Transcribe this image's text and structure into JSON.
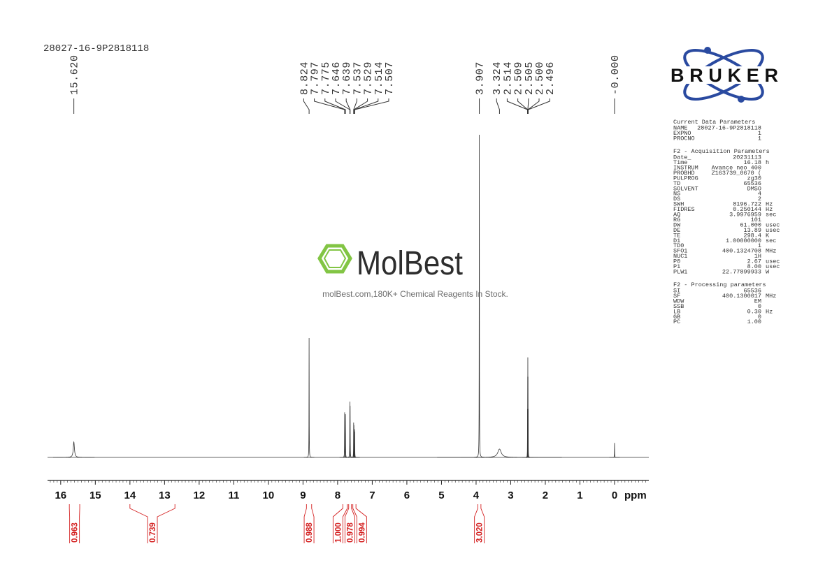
{
  "chart_data": {
    "type": "nmr",
    "title": "28027-16-9P2818118",
    "xlabel": "ppm",
    "xlim": [
      16.38,
      -0.99
    ],
    "xticks": [
      16,
      15,
      14,
      13,
      12,
      11,
      10,
      9,
      8,
      7,
      6,
      5,
      4,
      3,
      2,
      1,
      0
    ],
    "minor_xtick_step": 0.1,
    "ylim": [
      0,
      100
    ],
    "color": "#333333",
    "integral_color": "#d42020",
    "peaks": [
      {
        "ppm": 15.62,
        "label": "15.620",
        "height": 4.8,
        "width": 0.02
      },
      {
        "ppm": 8.824,
        "label": "8.824",
        "height": 37,
        "width": 0.003
      },
      {
        "ppm": 7.797,
        "label": "7.797",
        "height": 14,
        "width": 0.003
      },
      {
        "ppm": 7.775,
        "label": "7.775",
        "height": 13.4,
        "width": 0.003
      },
      {
        "ppm": 7.646,
        "label": "7.646",
        "height": 17.3,
        "width": 0.003
      },
      {
        "ppm": 7.639,
        "label": "7.639",
        "height": 16,
        "width": 0.003
      },
      {
        "ppm": 7.537,
        "label": "7.537",
        "height": 10.8,
        "width": 0.003
      },
      {
        "ppm": 7.529,
        "label": "7.529",
        "height": 10,
        "width": 0.003
      },
      {
        "ppm": 7.514,
        "label": "7.514",
        "height": 8.7,
        "width": 0.003
      },
      {
        "ppm": 7.507,
        "label": "7.507",
        "height": 8,
        "width": 0.003
      },
      {
        "ppm": 3.907,
        "label": "3.907",
        "height": 100,
        "width": 0.003
      },
      {
        "ppm": 3.324,
        "label": "3.324",
        "height": 2.6,
        "width": 0.06
      },
      {
        "ppm": 2.514,
        "label": "2.514",
        "height": 15,
        "width": 0.002
      },
      {
        "ppm": 2.509,
        "label": "2.509",
        "height": 25,
        "width": 0.002
      },
      {
        "ppm": 2.505,
        "label": "2.505",
        "height": 31,
        "width": 0.002
      },
      {
        "ppm": 2.5,
        "label": "2.500",
        "height": 25,
        "width": 0.002
      },
      {
        "ppm": 2.496,
        "label": "2.496",
        "height": 15,
        "width": 0.002
      },
      {
        "ppm": 0,
        "label": "-0.000",
        "height": 4.5,
        "width": 0.003
      }
    ],
    "integrals": [
      {
        "value": 0.963,
        "label": "0.963",
        "range": [
          15.75,
          15.45
        ]
      },
      {
        "value": 0.739,
        "label": "0.739",
        "range": [
          14.0,
          12.7
        ]
      },
      {
        "value": 0.988,
        "label": "0.988",
        "range": [
          8.9,
          8.75
        ]
      },
      {
        "value": 1.0,
        "label": "1.000",
        "range": [
          7.85,
          7.72
        ]
      },
      {
        "value": 0.978,
        "label": "0.978",
        "range": [
          7.68,
          7.6
        ]
      },
      {
        "value": 0.994,
        "label": "0.994",
        "range": [
          7.56,
          7.47
        ]
      },
      {
        "value": 3.02,
        "label": "3.020",
        "range": [
          3.95,
          3.86
        ]
      }
    ]
  },
  "logo": {
    "text": "BRUKER"
  },
  "watermark": {
    "brand": "MolBest",
    "tagline": "molBest.com,180K+ Chemical Reagents In Stock."
  },
  "parameters": [
    {
      "title": "Current Data Parameters",
      "rows": [
        {
          "name": "NAME",
          "value": "28027-16-9P2818118"
        },
        {
          "name": "EXPNO",
          "value": "1"
        },
        {
          "name": "PROCNO",
          "value": "1"
        }
      ]
    },
    {
      "title": "F2 - Acquisition Parameters",
      "rows": [
        {
          "name": "Date_",
          "value": "20231113"
        },
        {
          "name": "Time",
          "value": "16.18",
          "unit": "h"
        },
        {
          "name": "INSTRUM",
          "value": "Avance neo 400"
        },
        {
          "name": "PROBHD",
          "value": "Z163739_0670 ("
        },
        {
          "name": "PULPROG",
          "value": "zg30"
        },
        {
          "name": "TD",
          "value": "65536"
        },
        {
          "name": "SOLVENT",
          "value": "DMSO"
        },
        {
          "name": "NS",
          "value": "4"
        },
        {
          "name": "DS",
          "value": "2"
        },
        {
          "name": "SWH",
          "value": "8196.722",
          "unit": "Hz"
        },
        {
          "name": "FIDRES",
          "value": "0.250144",
          "unit": "Hz"
        },
        {
          "name": "AQ",
          "value": "3.9976959",
          "unit": "sec"
        },
        {
          "name": "RG",
          "value": "101"
        },
        {
          "name": "DW",
          "value": "61.000",
          "unit": "usec"
        },
        {
          "name": "DE",
          "value": "13.89",
          "unit": "usec"
        },
        {
          "name": "TE",
          "value": "298.4",
          "unit": "K"
        },
        {
          "name": "D1",
          "value": "1.00000000",
          "unit": "sec"
        },
        {
          "name": "TD0",
          "value": "1"
        },
        {
          "name": "SFO1",
          "value": "400.1324708",
          "unit": "MHz"
        },
        {
          "name": "NUC1",
          "value": "1H"
        },
        {
          "name": "P0",
          "value": "2.67",
          "unit": "usec"
        },
        {
          "name": "P1",
          "value": "8.00",
          "unit": "usec"
        },
        {
          "name": "PLW1",
          "value": "22.77899933",
          "unit": "W"
        }
      ]
    },
    {
      "title": "F2 - Processing parameters",
      "rows": [
        {
          "name": "SI",
          "value": "65536"
        },
        {
          "name": "SF",
          "value": "400.1300017",
          "unit": "MHz"
        },
        {
          "name": "WDW",
          "value": "EM"
        },
        {
          "name": "SSB",
          "value": "0"
        },
        {
          "name": "LB",
          "value": "0.30",
          "unit": "Hz"
        },
        {
          "name": "GB",
          "value": "0"
        },
        {
          "name": "PC",
          "value": "1.00"
        }
      ]
    }
  ]
}
